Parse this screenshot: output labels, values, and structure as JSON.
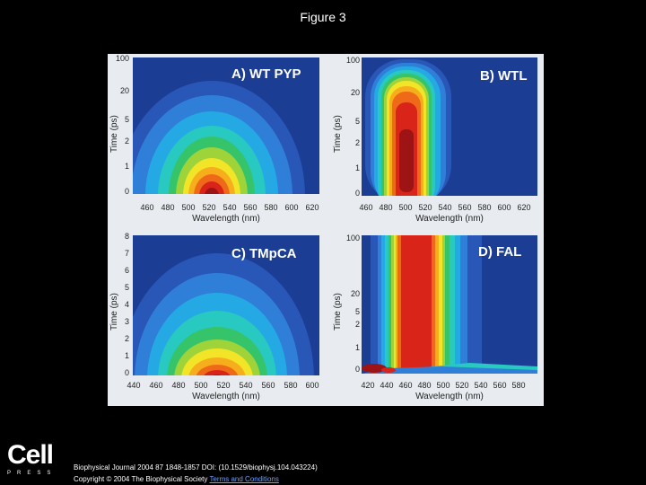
{
  "title": "Figure 3",
  "panels": [
    {
      "label": "A) WT PYP",
      "ylabel": "Time (ps)",
      "xlabel": "Wavelength (nm)",
      "yticks": [
        "100",
        "20",
        "5",
        "2",
        "1",
        "0"
      ],
      "xticks": [
        "460",
        "480",
        "500",
        "520",
        "540",
        "560",
        "580",
        "600",
        "620"
      ]
    },
    {
      "label": "B) WTL",
      "ylabel": "Time (ps)",
      "xlabel": "Wavelength (nm)",
      "yticks": [
        "100",
        "20",
        "5",
        "2",
        "1",
        "0"
      ],
      "xticks": [
        "460",
        "480",
        "500",
        "520",
        "540",
        "560",
        "580",
        "600",
        "620"
      ]
    },
    {
      "label": "C) TMpCA",
      "ylabel": "Time (ps)",
      "xlabel": "Wavelength (nm)",
      "yticks": [
        "8",
        "7",
        "6",
        "5",
        "4",
        "3",
        "2",
        "1",
        "0"
      ],
      "xticks": [
        "440",
        "460",
        "480",
        "500",
        "520",
        "540",
        "560",
        "580",
        "600"
      ]
    },
    {
      "label": "D) FAL",
      "ylabel": "Time (ps)",
      "xlabel": "Wavelength (nm)",
      "yticks": [
        "100",
        "20",
        "5",
        "2",
        "1",
        "0"
      ],
      "xticks": [
        "420",
        "440",
        "460",
        "480",
        "500",
        "520",
        "540",
        "560",
        "580"
      ]
    }
  ],
  "footer": {
    "logo_word": "Cell",
    "logo_sub": "PRESS",
    "citation": "Biophysical Journal 2004 87 1848-1857 DOI: (10.1529/biophysj.104.043224)",
    "copyright_prefix": "Copyright © 2004 The Biophysical Society",
    "terms_link": "Terms and Conditions"
  },
  "colors": {
    "background": "#000000",
    "plot_base": "#1c3d94",
    "contour_levels": [
      "#2857b8",
      "#2f7fd8",
      "#25a9e4",
      "#27c9c0",
      "#36c46a",
      "#9ed43a",
      "#f2e528",
      "#f6ae1c",
      "#ef6a18",
      "#d9241a",
      "#9e1414"
    ]
  }
}
